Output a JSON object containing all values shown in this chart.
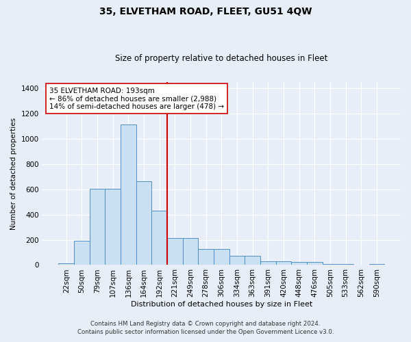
{
  "title": "35, ELVETHAM ROAD, FLEET, GU51 4QW",
  "subtitle": "Size of property relative to detached houses in Fleet",
  "xlabel": "Distribution of detached houses by size in Fleet",
  "ylabel": "Number of detached properties",
  "bar_labels": [
    "22sqm",
    "50sqm",
    "79sqm",
    "107sqm",
    "136sqm",
    "164sqm",
    "192sqm",
    "221sqm",
    "249sqm",
    "278sqm",
    "306sqm",
    "334sqm",
    "363sqm",
    "391sqm",
    "420sqm",
    "448sqm",
    "476sqm",
    "505sqm",
    "533sqm",
    "562sqm",
    "590sqm"
  ],
  "bar_values": [
    15,
    190,
    605,
    605,
    1110,
    665,
    430,
    215,
    215,
    128,
    128,
    72,
    72,
    32,
    32,
    22,
    22,
    10,
    10,
    0,
    10
  ],
  "bar_color": "#c9dff2",
  "bar_edge_color": "#4f8ec9",
  "vline_x_idx": 6,
  "vline_color": "#cc0000",
  "annotation_text": "35 ELVETHAM ROAD: 193sqm\n← 86% of detached houses are smaller (2,988)\n14% of semi-detached houses are larger (478) →",
  "annotation_box_color": "#ffffff",
  "annotation_box_edge": "#cc0000",
  "ylim": [
    0,
    1450
  ],
  "yticks": [
    0,
    200,
    400,
    600,
    800,
    1000,
    1200,
    1400
  ],
  "footer1": "Contains HM Land Registry data © Crown copyright and database right 2024.",
  "footer2": "Contains public sector information licensed under the Open Government Licence v3.0.",
  "bg_color": "#e8eef7",
  "plot_bg_color": "#e8eef7"
}
